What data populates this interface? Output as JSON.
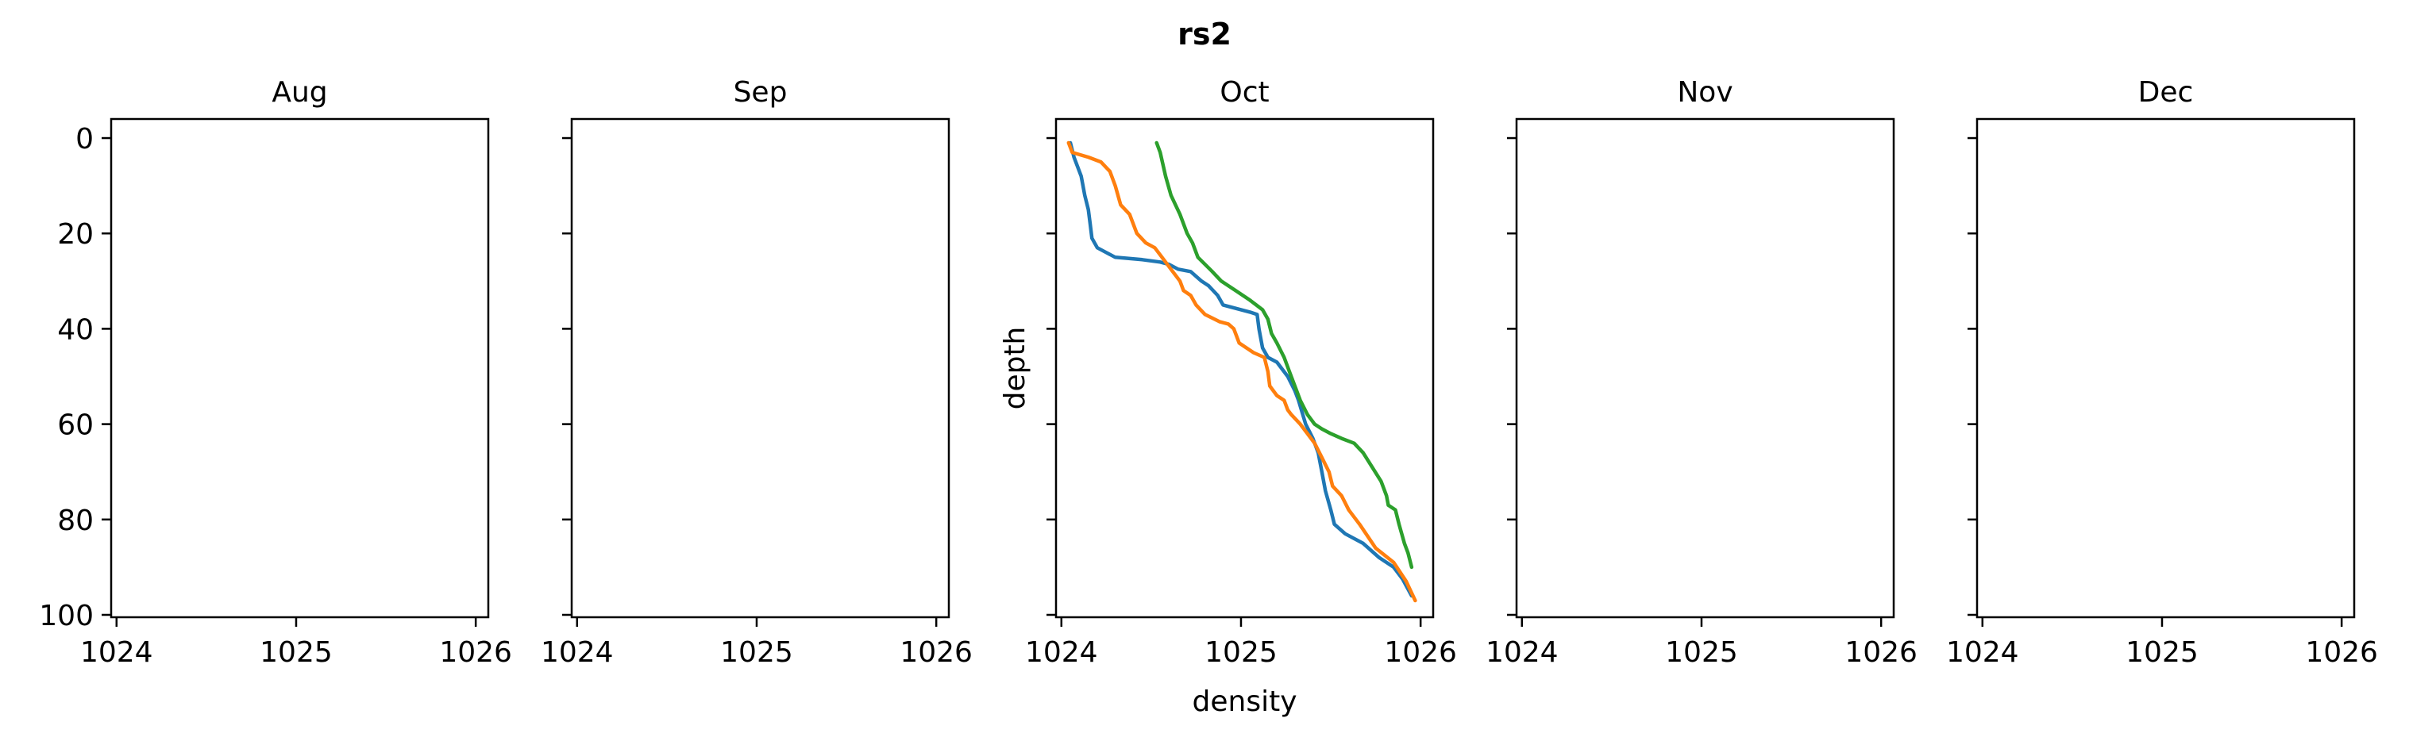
{
  "figure": {
    "suptitle": "rs2"
  },
  "chart_data": [
    {
      "type": "line",
      "title": "Aug",
      "xlabel": "",
      "ylabel": "",
      "xlim": [
        1023.97,
        1026.07
      ],
      "ylim": [
        100.5,
        -4
      ],
      "y_inverted": true,
      "xticks": [
        1024,
        1025,
        1026
      ],
      "yticks": [
        0,
        20,
        40,
        60,
        80,
        100
      ],
      "show_yticklabels": true,
      "series": []
    },
    {
      "type": "line",
      "title": "Sep",
      "xlabel": "",
      "ylabel": "",
      "xlim": [
        1023.97,
        1026.07
      ],
      "ylim": [
        100.5,
        -4
      ],
      "y_inverted": true,
      "xticks": [
        1024,
        1025,
        1026
      ],
      "yticks": [
        0,
        20,
        40,
        60,
        80,
        100
      ],
      "show_yticklabels": false,
      "series": []
    },
    {
      "type": "line",
      "title": "Oct",
      "xlabel": "density",
      "ylabel": "depth",
      "xlim": [
        1023.97,
        1026.07
      ],
      "ylim": [
        100.5,
        -4
      ],
      "y_inverted": true,
      "xticks": [
        1024,
        1025,
        1026
      ],
      "yticks": [
        0,
        20,
        40,
        60,
        80,
        100
      ],
      "show_yticklabels": false,
      "series": [
        {
          "color": "#1f77b4",
          "x": [
            1024.05,
            1024.07,
            1024.11,
            1024.13,
            1024.15,
            1024.16,
            1024.17,
            1024.2,
            1024.25,
            1024.3,
            1024.45,
            1024.55,
            1024.6,
            1024.65,
            1024.72,
            1024.78,
            1024.82,
            1024.87,
            1024.9,
            1025.0,
            1025.05,
            1025.09,
            1025.1,
            1025.12,
            1025.15,
            1025.2,
            1025.26,
            1025.3,
            1025.32,
            1025.36,
            1025.4,
            1025.43,
            1025.45,
            1025.47,
            1025.5,
            1025.52,
            1025.58,
            1025.68,
            1025.77,
            1025.85,
            1025.9,
            1025.95
          ],
          "y": [
            1,
            4,
            8,
            12,
            15,
            18,
            21,
            23,
            24,
            25,
            25.5,
            26,
            26.5,
            27.5,
            28,
            30,
            31,
            33,
            35,
            36,
            36.5,
            37,
            40,
            44,
            46,
            47,
            50,
            53,
            55,
            60,
            63,
            66,
            70,
            74,
            78,
            81,
            83,
            85,
            88,
            90,
            92.5,
            96
          ]
        },
        {
          "color": "#ff7f0e",
          "x": [
            1024.04,
            1024.06,
            1024.15,
            1024.22,
            1024.27,
            1024.3,
            1024.33,
            1024.38,
            1024.42,
            1024.47,
            1024.52,
            1024.56,
            1024.6,
            1024.62,
            1024.66,
            1024.68,
            1024.72,
            1024.75,
            1024.8,
            1024.88,
            1024.93,
            1024.96,
            1024.99,
            1025.07,
            1025.13,
            1025.15,
            1025.16,
            1025.2,
            1025.24,
            1025.26,
            1025.28,
            1025.33,
            1025.37,
            1025.41,
            1025.45,
            1025.49,
            1025.51,
            1025.56,
            1025.6,
            1025.66,
            1025.75,
            1025.85,
            1025.92,
            1025.97
          ],
          "y": [
            1,
            3,
            4,
            5,
            7,
            10,
            14,
            16,
            20,
            22,
            23,
            25,
            27,
            28,
            30,
            32,
            33,
            35,
            37,
            38.5,
            39,
            40,
            43,
            45,
            46,
            49,
            52,
            54,
            55,
            57,
            58,
            60,
            62,
            64,
            67,
            70,
            73,
            75,
            78,
            81,
            86,
            89,
            93,
            97
          ]
        },
        {
          "color": "#2ca02c",
          "x": [
            1024.53,
            1024.55,
            1024.58,
            1024.61,
            1024.66,
            1024.7,
            1024.73,
            1024.76,
            1024.84,
            1024.89,
            1024.97,
            1025.05,
            1025.12,
            1025.15,
            1025.17,
            1025.2,
            1025.24,
            1025.27,
            1025.3,
            1025.33,
            1025.37,
            1025.41,
            1025.45,
            1025.5,
            1025.56,
            1025.63,
            1025.68,
            1025.73,
            1025.78,
            1025.81,
            1025.82,
            1025.86,
            1025.88,
            1025.91,
            1025.93,
            1025.95
          ],
          "y": [
            1,
            3,
            8,
            12,
            16,
            20,
            22,
            25,
            28,
            30,
            32,
            34,
            36,
            38,
            41,
            43,
            46,
            49,
            52,
            55,
            58,
            60,
            61,
            62,
            63,
            64,
            66,
            69,
            72,
            75,
            77,
            78,
            81,
            85,
            87,
            90
          ]
        }
      ]
    },
    {
      "type": "line",
      "title": "Nov",
      "xlabel": "",
      "ylabel": "",
      "xlim": [
        1023.97,
        1026.07
      ],
      "ylim": [
        100.5,
        -4
      ],
      "y_inverted": true,
      "xticks": [
        1024,
        1025,
        1026
      ],
      "yticks": [
        0,
        20,
        40,
        60,
        80,
        100
      ],
      "show_yticklabels": false,
      "series": []
    },
    {
      "type": "line",
      "title": "Dec",
      "xlabel": "",
      "ylabel": "",
      "xlim": [
        1023.97,
        1026.07
      ],
      "ylim": [
        100.5,
        -4
      ],
      "y_inverted": true,
      "xticks": [
        1024,
        1025,
        1026
      ],
      "yticks": [
        0,
        20,
        40,
        60,
        80,
        100
      ],
      "show_yticklabels": false,
      "series": []
    }
  ]
}
